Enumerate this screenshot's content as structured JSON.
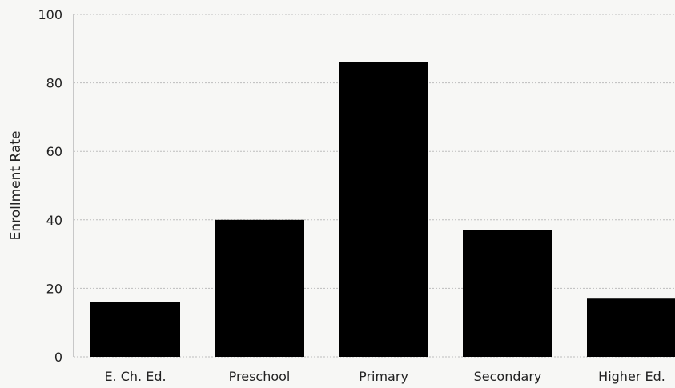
{
  "chart_data": {
    "type": "bar",
    "categories": [
      "E. Ch. Ed.",
      "Preschool",
      "Primary",
      "Secondary",
      "Higher Ed."
    ],
    "values": [
      16,
      40,
      86,
      37,
      17
    ],
    "title": "",
    "xlabel": "",
    "ylabel": "Enrollment Rate",
    "ylim": [
      0,
      100
    ],
    "yticks": [
      0,
      20,
      40,
      60,
      80,
      100
    ],
    "grid": true,
    "bar_color": "#000000"
  }
}
